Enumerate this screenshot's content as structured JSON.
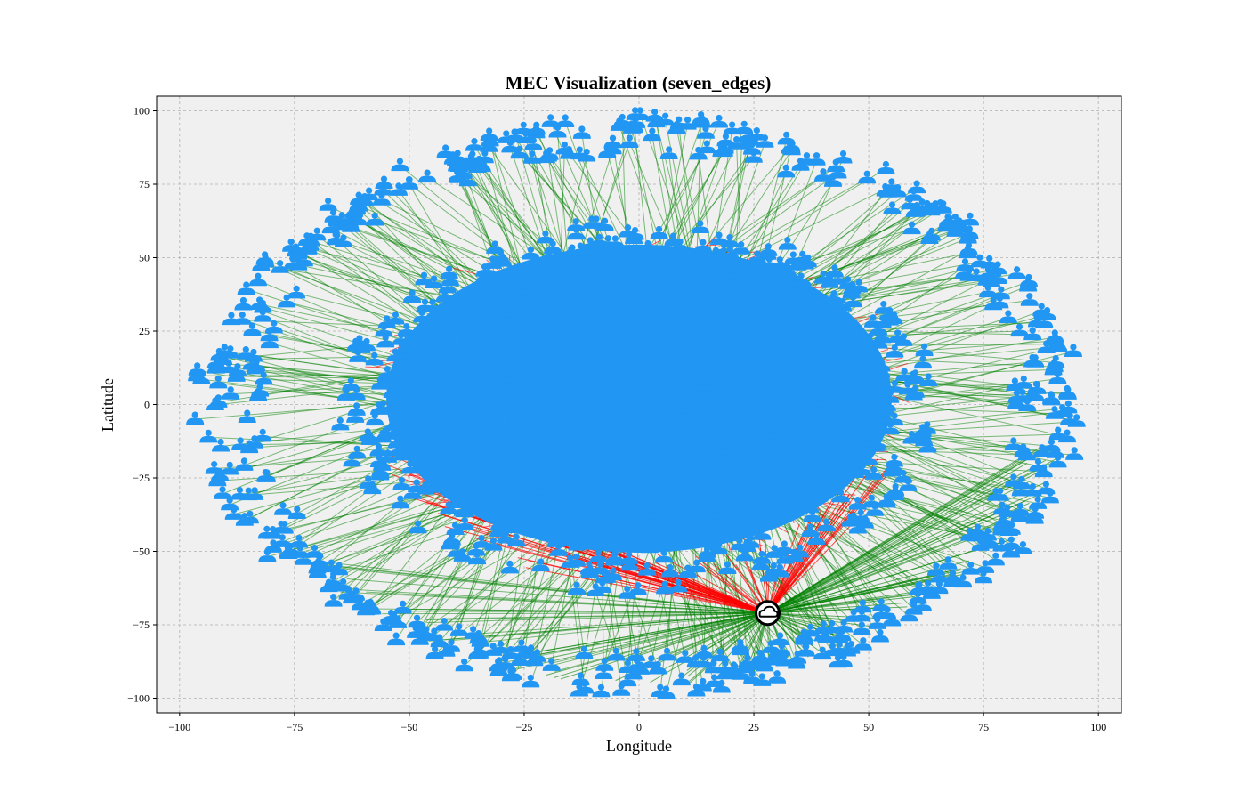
{
  "chart_data": {
    "type": "scatter",
    "title": "MEC Visualization (seven_edges)",
    "xlabel": "Longitude",
    "ylabel": "Latitude",
    "xlim": [
      -105,
      105
    ],
    "ylim": [
      -105,
      105
    ],
    "xticks": [
      -100,
      -75,
      -50,
      -25,
      0,
      25,
      50,
      75,
      100
    ],
    "yticks": [
      -100,
      -75,
      -50,
      -25,
      0,
      25,
      50,
      75,
      100
    ],
    "xtick_labels": [
      "−100",
      "−75",
      "−50",
      "−25",
      "0",
      "25",
      "50",
      "75",
      "100"
    ],
    "ytick_labels": [
      "−100",
      "−75",
      "−50",
      "−25",
      "0",
      "25",
      "50",
      "75",
      "100"
    ],
    "grid": true,
    "background": "#f0f0f0",
    "colors": {
      "users": "#2196f3",
      "near_link": "#ff0000",
      "far_link": "#008000",
      "edge_server": "#000000"
    },
    "edge_server": {
      "x": 28,
      "y": -71,
      "icon": "cloud-icon"
    },
    "inner_cluster": {
      "center": [
        0,
        5
      ],
      "radius_x": 55,
      "radius_y": 57
    },
    "outer_ring": {
      "center": [
        0,
        0
      ],
      "radius_x_range": [
        82,
        97
      ],
      "radius_y_range": [
        85,
        99
      ]
    },
    "user_icon": "person-icon"
  }
}
